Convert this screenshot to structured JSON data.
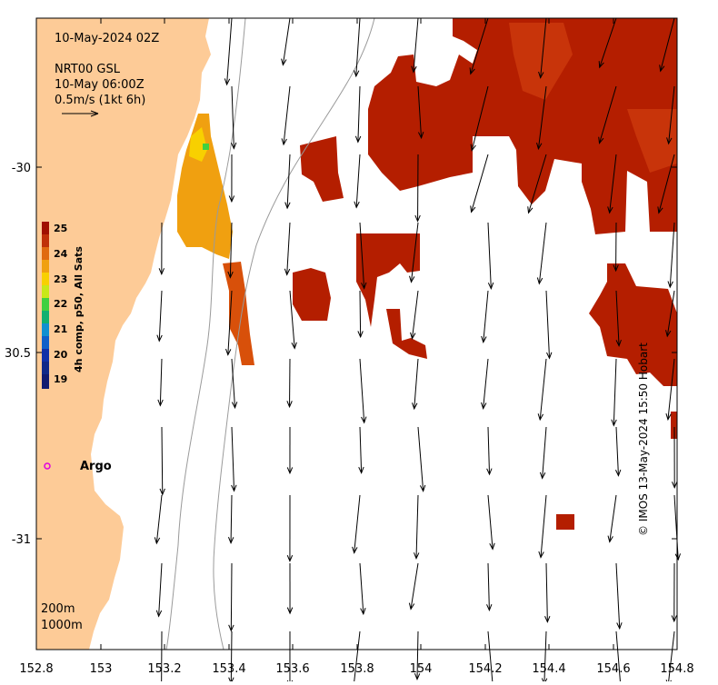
{
  "header": {
    "date_label": "10-May-2024 02Z",
    "product_label": "NRT00 GSL",
    "product_time": "10-May 06:00Z",
    "scale_label": "0.5m/s (1kt 6h)"
  },
  "colorbar": {
    "title": "4h comp, p50, All Sats",
    "ticks": [
      "25",
      "24",
      "23",
      "22",
      "21",
      "20",
      "19"
    ]
  },
  "axes": {
    "x_ticks": [
      "152.8",
      "153",
      "153.2",
      "153.4",
      "153.6",
      "153.8",
      "154",
      "154.2",
      "154.4",
      "154.6",
      "154.8"
    ],
    "y_ticks": [
      "-30",
      "30.5",
      "-31"
    ]
  },
  "marker": {
    "label": "Argo"
  },
  "legend": {
    "contour_200": "200m",
    "contour_1000": "1000m"
  },
  "credit": "© IMOS 13-May-2024 15:50 Hobart",
  "colors": {
    "land": "#fdcb97",
    "sst_warm": "#b41e00",
    "sst_mid": "#d8500a",
    "sst_orange": "#f0a010",
    "sst_yellow": "#f8d000",
    "argo": "#e000e0"
  }
}
